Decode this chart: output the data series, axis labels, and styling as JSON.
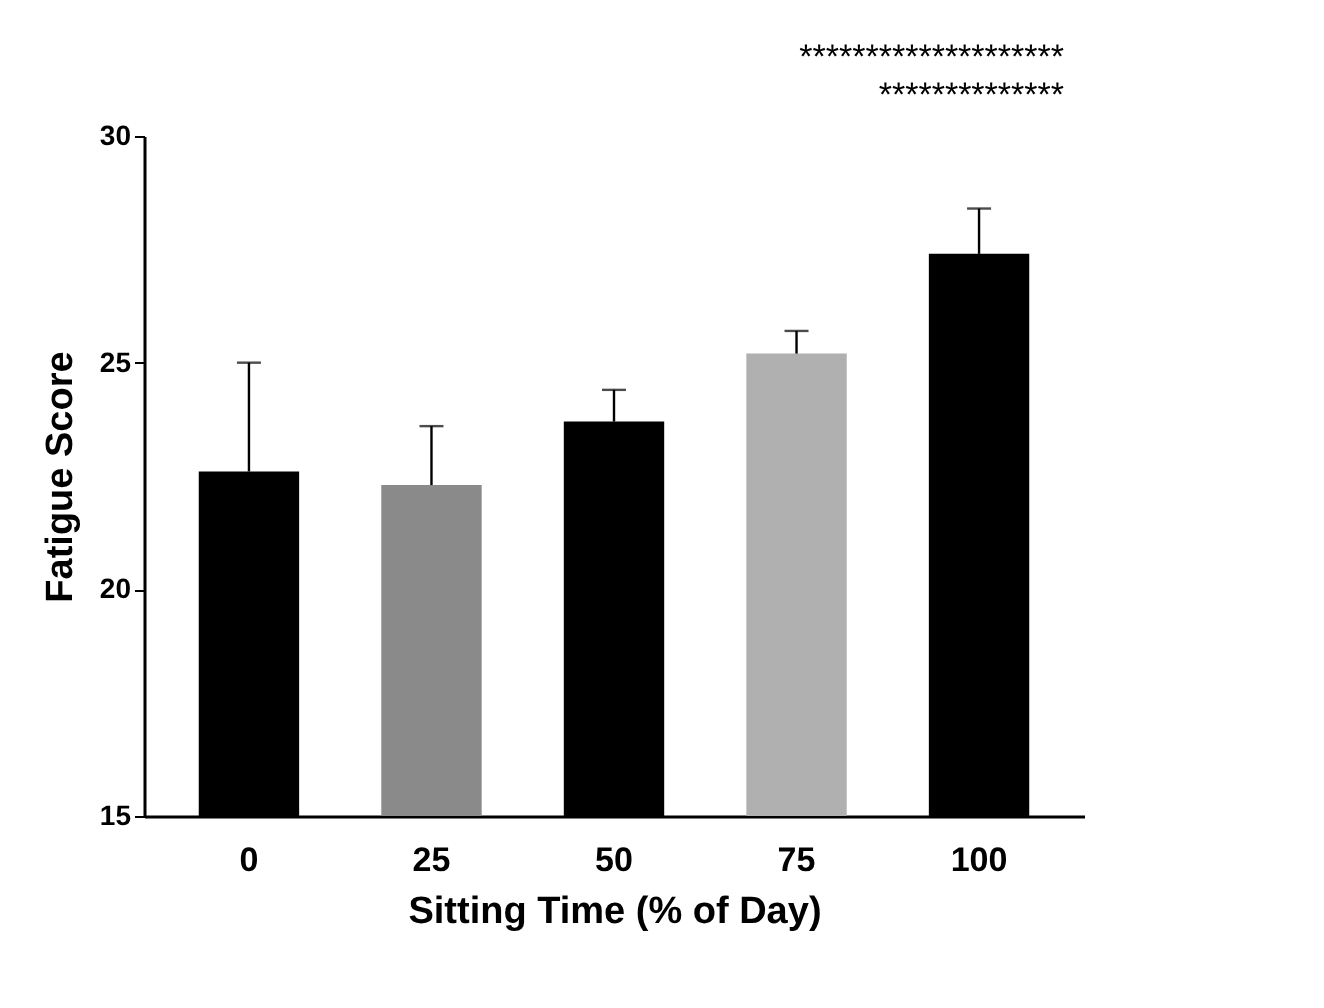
{
  "chart_data": {
    "type": "bar",
    "xlabel": "Sitting Time (% of Day)",
    "ylabel": "Fatigue Score",
    "categories": [
      "0",
      "25",
      "50",
      "75",
      "100"
    ],
    "values": [
      22.6,
      22.3,
      23.7,
      25.2,
      27.4
    ],
    "colors": [
      "#000000",
      "#8a8a8a",
      "#000000",
      "#b0b0b0",
      "#000000"
    ],
    "errors": [
      [
        22.6,
        25.0
      ],
      [
        22.3,
        23.6
      ],
      [
        23.7,
        24.4
      ],
      [
        25.2,
        25.7
      ],
      [
        27.4,
        28.4
      ]
    ],
    "ylim": [
      15,
      30
    ],
    "yticks": [
      15,
      20,
      25,
      30
    ],
    "annotations": [
      "********************",
      "**************"
    ],
    "grid": false
  }
}
